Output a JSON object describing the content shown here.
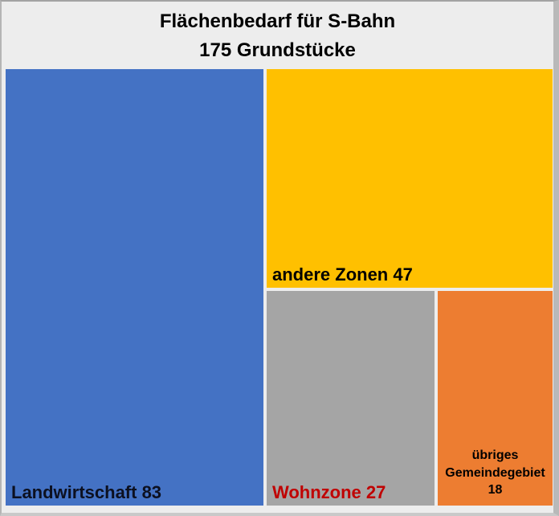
{
  "chart_data": {
    "type": "treemap",
    "title": "Flächenbedarf für S-Bahn",
    "subtitle": "175 Grundstücke",
    "total": 175,
    "unit": "Grundstücke",
    "categories": [
      "Landwirtschaft",
      "andere Zonen",
      "Wohnzone",
      "übriges Gemeindegebiet"
    ],
    "values": [
      83,
      47,
      27,
      18
    ],
    "colors": [
      "#4472C4",
      "#FFC000",
      "#A5A5A5",
      "#ED7D31"
    ],
    "label_colors": [
      "#0C1020",
      "#000000",
      "#C00000",
      "#000000"
    ],
    "legend": "none",
    "labels_position": "inside-bottom"
  },
  "title": {
    "line1": "Flächenbedarf für S-Bahn",
    "line2": "175 Grundstücke"
  },
  "tiles": [
    {
      "label": "Landwirtschaft 83"
    },
    {
      "label": "andere Zonen 47"
    },
    {
      "label": "Wohnzone 27"
    },
    {
      "label": "übriges Gemeindegebiet 18"
    }
  ]
}
